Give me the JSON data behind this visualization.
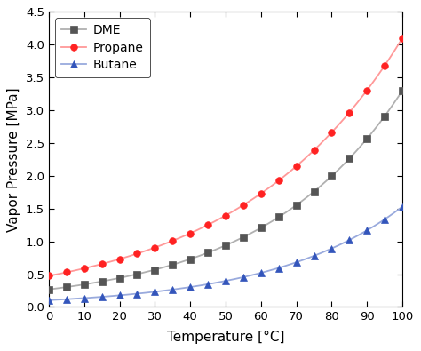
{
  "xlabel": "Temperature [°C]",
  "ylabel": "Vapor Pressure [MPa]",
  "xlim": [
    0,
    100
  ],
  "ylim": [
    0,
    4.5
  ],
  "xticks": [
    0,
    10,
    20,
    30,
    40,
    50,
    60,
    70,
    80,
    90,
    100
  ],
  "yticks": [
    0.0,
    0.5,
    1.0,
    1.5,
    2.0,
    2.5,
    3.0,
    3.5,
    4.0,
    4.5
  ],
  "dme_line_color": "#b0b0b0",
  "dme_marker_color": "#555555",
  "propane_line_color": "#ff9999",
  "propane_marker_color": "#ff2222",
  "butane_line_color": "#99aadd",
  "butane_marker_color": "#3355bb",
  "dme_p0": 0.267,
  "dme_p100": 3.3,
  "propane_p0": 0.474,
  "propane_p100": 4.1,
  "butane_p0": 0.103,
  "butane_p100": 1.53,
  "marker_interval": 5,
  "marker_size": 5.5,
  "line_width": 1.3,
  "legend_labels": [
    "DME",
    "Propane",
    "Butane"
  ],
  "legend_markers": [
    "s",
    "o",
    "^"
  ],
  "figsize": [
    4.74,
    3.95
  ],
  "dpi": 100
}
